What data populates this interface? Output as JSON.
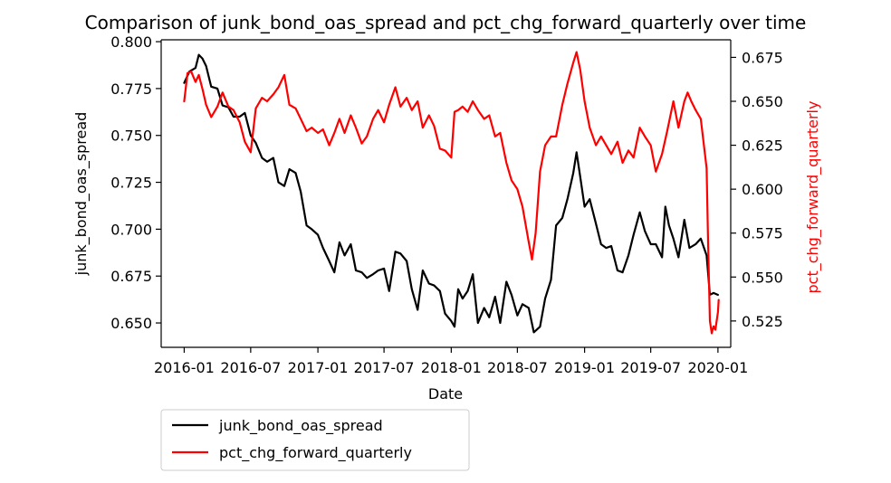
{
  "chart_data": {
    "type": "line",
    "title": "Comparison of junk_bond_oas_spread and pct_chg_forward_quarterly over time",
    "xlabel": "Date",
    "ylabel_left": "junk_bond_oas_spread",
    "ylabel_right": "pct_chg_forward_quarterly",
    "xlim": [
      "2015-10-30",
      "2020-02-05"
    ],
    "ylim_left": [
      0.637,
      0.801
    ],
    "ylim_right": [
      0.51,
      0.685
    ],
    "x_ticks": [
      {
        "date": "2016-01-01",
        "label": "2016-01"
      },
      {
        "date": "2016-07-01",
        "label": "2016-07"
      },
      {
        "date": "2017-01-01",
        "label": "2017-01"
      },
      {
        "date": "2017-07-01",
        "label": "2017-07"
      },
      {
        "date": "2018-01-01",
        "label": "2018-01"
      },
      {
        "date": "2018-07-01",
        "label": "2018-07"
      },
      {
        "date": "2019-01-01",
        "label": "2019-01"
      },
      {
        "date": "2019-07-01",
        "label": "2019-07"
      },
      {
        "date": "2020-01-01",
        "label": "2020-01"
      }
    ],
    "y_ticks_left": [
      {
        "value": 0.65,
        "label": "0.650"
      },
      {
        "value": 0.675,
        "label": "0.675"
      },
      {
        "value": 0.7,
        "label": "0.700"
      },
      {
        "value": 0.725,
        "label": "0.725"
      },
      {
        "value": 0.75,
        "label": "0.750"
      },
      {
        "value": 0.775,
        "label": "0.775"
      },
      {
        "value": 0.8,
        "label": "0.800"
      }
    ],
    "y_ticks_right": [
      {
        "value": 0.525,
        "label": "0.525"
      },
      {
        "value": 0.55,
        "label": "0.550"
      },
      {
        "value": 0.575,
        "label": "0.575"
      },
      {
        "value": 0.6,
        "label": "0.600"
      },
      {
        "value": 0.625,
        "label": "0.625"
      },
      {
        "value": 0.65,
        "label": "0.650"
      },
      {
        "value": 0.675,
        "label": "0.675"
      }
    ],
    "grid": false,
    "legend_position": "below-left",
    "series": [
      {
        "name": "junk_bond_oas_spread",
        "axis": "left",
        "color": "#000000",
        "points": [
          [
            "2016-01-01",
            0.778
          ],
          [
            "2016-01-15",
            0.784
          ],
          [
            "2016-02-01",
            0.786
          ],
          [
            "2016-02-10",
            0.793
          ],
          [
            "2016-02-20",
            0.791
          ],
          [
            "2016-03-01",
            0.787
          ],
          [
            "2016-03-15",
            0.776
          ],
          [
            "2016-04-01",
            0.775
          ],
          [
            "2016-04-15",
            0.766
          ],
          [
            "2016-05-01",
            0.765
          ],
          [
            "2016-05-15",
            0.76
          ],
          [
            "2016-06-01",
            0.76
          ],
          [
            "2016-06-15",
            0.762
          ],
          [
            "2016-07-01",
            0.75
          ],
          [
            "2016-07-15",
            0.746
          ],
          [
            "2016-08-01",
            0.738
          ],
          [
            "2016-08-15",
            0.736
          ],
          [
            "2016-09-01",
            0.738
          ],
          [
            "2016-09-15",
            0.725
          ],
          [
            "2016-10-01",
            0.723
          ],
          [
            "2016-10-15",
            0.732
          ],
          [
            "2016-11-01",
            0.73
          ],
          [
            "2016-11-15",
            0.72
          ],
          [
            "2016-12-01",
            0.702
          ],
          [
            "2016-12-15",
            0.7
          ],
          [
            "2017-01-01",
            0.697
          ],
          [
            "2017-01-15",
            0.69
          ],
          [
            "2017-02-01",
            0.683
          ],
          [
            "2017-02-15",
            0.677
          ],
          [
            "2017-03-01",
            0.693
          ],
          [
            "2017-03-15",
            0.686
          ],
          [
            "2017-04-01",
            0.692
          ],
          [
            "2017-04-15",
            0.678
          ],
          [
            "2017-05-01",
            0.677
          ],
          [
            "2017-05-15",
            0.674
          ],
          [
            "2017-06-01",
            0.676
          ],
          [
            "2017-06-15",
            0.678
          ],
          [
            "2017-07-01",
            0.679
          ],
          [
            "2017-07-15",
            0.667
          ],
          [
            "2017-08-01",
            0.688
          ],
          [
            "2017-08-15",
            0.687
          ],
          [
            "2017-09-01",
            0.683
          ],
          [
            "2017-09-15",
            0.668
          ],
          [
            "2017-10-01",
            0.657
          ],
          [
            "2017-10-15",
            0.678
          ],
          [
            "2017-11-01",
            0.671
          ],
          [
            "2017-11-15",
            0.67
          ],
          [
            "2017-12-01",
            0.667
          ],
          [
            "2017-12-15",
            0.655
          ],
          [
            "2018-01-01",
            0.651
          ],
          [
            "2018-01-10",
            0.648
          ],
          [
            "2018-01-20",
            0.668
          ],
          [
            "2018-02-01",
            0.663
          ],
          [
            "2018-02-15",
            0.667
          ],
          [
            "2018-03-01",
            0.676
          ],
          [
            "2018-03-15",
            0.65
          ],
          [
            "2018-04-01",
            0.658
          ],
          [
            "2018-04-15",
            0.653
          ],
          [
            "2018-05-01",
            0.664
          ],
          [
            "2018-05-15",
            0.65
          ],
          [
            "2018-06-01",
            0.672
          ],
          [
            "2018-06-15",
            0.665
          ],
          [
            "2018-07-01",
            0.654
          ],
          [
            "2018-07-15",
            0.66
          ],
          [
            "2018-08-01",
            0.658
          ],
          [
            "2018-08-15",
            0.645
          ],
          [
            "2018-09-01",
            0.648
          ],
          [
            "2018-09-15",
            0.663
          ],
          [
            "2018-10-01",
            0.673
          ],
          [
            "2018-10-15",
            0.702
          ],
          [
            "2018-11-01",
            0.706
          ],
          [
            "2018-11-15",
            0.716
          ],
          [
            "2018-12-01",
            0.73
          ],
          [
            "2018-12-10",
            0.741
          ],
          [
            "2018-12-20",
            0.728
          ],
          [
            "2019-01-01",
            0.712
          ],
          [
            "2019-01-15",
            0.716
          ],
          [
            "2019-02-01",
            0.703
          ],
          [
            "2019-02-15",
            0.692
          ],
          [
            "2019-03-01",
            0.69
          ],
          [
            "2019-03-15",
            0.691
          ],
          [
            "2019-04-01",
            0.678
          ],
          [
            "2019-04-15",
            0.677
          ],
          [
            "2019-05-01",
            0.686
          ],
          [
            "2019-05-15",
            0.697
          ],
          [
            "2019-06-01",
            0.709
          ],
          [
            "2019-06-15",
            0.699
          ],
          [
            "2019-07-01",
            0.692
          ],
          [
            "2019-07-15",
            0.692
          ],
          [
            "2019-08-01",
            0.685
          ],
          [
            "2019-08-10",
            0.712
          ],
          [
            "2019-08-20",
            0.702
          ],
          [
            "2019-09-01",
            0.695
          ],
          [
            "2019-09-15",
            0.685
          ],
          [
            "2019-10-01",
            0.705
          ],
          [
            "2019-10-15",
            0.69
          ],
          [
            "2019-11-01",
            0.692
          ],
          [
            "2019-11-15",
            0.695
          ],
          [
            "2019-12-01",
            0.686
          ],
          [
            "2019-12-10",
            0.665
          ],
          [
            "2019-12-20",
            0.666
          ],
          [
            "2020-01-01",
            0.665
          ]
        ]
      },
      {
        "name": "pct_chg_forward_quarterly",
        "axis": "right",
        "color": "#ff0000",
        "points": [
          [
            "2016-01-01",
            0.65
          ],
          [
            "2016-01-10",
            0.666
          ],
          [
            "2016-01-20",
            0.667
          ],
          [
            "2016-02-01",
            0.661
          ],
          [
            "2016-02-10",
            0.665
          ],
          [
            "2016-02-20",
            0.657
          ],
          [
            "2016-03-01",
            0.648
          ],
          [
            "2016-03-15",
            0.641
          ],
          [
            "2016-04-01",
            0.647
          ],
          [
            "2016-04-15",
            0.655
          ],
          [
            "2016-05-01",
            0.647
          ],
          [
            "2016-05-15",
            0.645
          ],
          [
            "2016-06-01",
            0.638
          ],
          [
            "2016-06-15",
            0.627
          ],
          [
            "2016-07-01",
            0.621
          ],
          [
            "2016-07-15",
            0.646
          ],
          [
            "2016-08-01",
            0.652
          ],
          [
            "2016-08-15",
            0.65
          ],
          [
            "2016-09-01",
            0.654
          ],
          [
            "2016-09-15",
            0.658
          ],
          [
            "2016-10-01",
            0.665
          ],
          [
            "2016-10-15",
            0.648
          ],
          [
            "2016-11-01",
            0.646
          ],
          [
            "2016-11-15",
            0.64
          ],
          [
            "2016-12-01",
            0.633
          ],
          [
            "2016-12-15",
            0.635
          ],
          [
            "2017-01-01",
            0.632
          ],
          [
            "2017-01-15",
            0.634
          ],
          [
            "2017-02-01",
            0.625
          ],
          [
            "2017-02-15",
            0.632
          ],
          [
            "2017-03-01",
            0.64
          ],
          [
            "2017-03-15",
            0.632
          ],
          [
            "2017-04-01",
            0.642
          ],
          [
            "2017-04-15",
            0.635
          ],
          [
            "2017-05-01",
            0.626
          ],
          [
            "2017-05-15",
            0.63
          ],
          [
            "2017-06-01",
            0.64
          ],
          [
            "2017-06-15",
            0.645
          ],
          [
            "2017-07-01",
            0.638
          ],
          [
            "2017-07-15",
            0.648
          ],
          [
            "2017-08-01",
            0.658
          ],
          [
            "2017-08-15",
            0.647
          ],
          [
            "2017-09-01",
            0.652
          ],
          [
            "2017-09-15",
            0.645
          ],
          [
            "2017-10-01",
            0.65
          ],
          [
            "2017-10-15",
            0.635
          ],
          [
            "2017-11-01",
            0.642
          ],
          [
            "2017-11-15",
            0.636
          ],
          [
            "2017-12-01",
            0.623
          ],
          [
            "2017-12-15",
            0.622
          ],
          [
            "2018-01-01",
            0.618
          ],
          [
            "2018-01-10",
            0.644
          ],
          [
            "2018-01-20",
            0.645
          ],
          [
            "2018-02-01",
            0.647
          ],
          [
            "2018-02-15",
            0.644
          ],
          [
            "2018-03-01",
            0.65
          ],
          [
            "2018-03-15",
            0.645
          ],
          [
            "2018-04-01",
            0.64
          ],
          [
            "2018-04-15",
            0.642
          ],
          [
            "2018-05-01",
            0.63
          ],
          [
            "2018-05-15",
            0.632
          ],
          [
            "2018-06-01",
            0.615
          ],
          [
            "2018-06-15",
            0.605
          ],
          [
            "2018-07-01",
            0.6
          ],
          [
            "2018-07-15",
            0.59
          ],
          [
            "2018-08-01",
            0.57
          ],
          [
            "2018-08-10",
            0.56
          ],
          [
            "2018-08-20",
            0.575
          ],
          [
            "2018-09-01",
            0.61
          ],
          [
            "2018-09-15",
            0.625
          ],
          [
            "2018-10-01",
            0.63
          ],
          [
            "2018-10-15",
            0.63
          ],
          [
            "2018-11-01",
            0.648
          ],
          [
            "2018-11-15",
            0.66
          ],
          [
            "2018-12-01",
            0.672
          ],
          [
            "2018-12-10",
            0.678
          ],
          [
            "2018-12-20",
            0.668
          ],
          [
            "2019-01-01",
            0.65
          ],
          [
            "2019-01-15",
            0.635
          ],
          [
            "2019-02-01",
            0.625
          ],
          [
            "2019-02-15",
            0.63
          ],
          [
            "2019-03-01",
            0.625
          ],
          [
            "2019-03-15",
            0.62
          ],
          [
            "2019-04-01",
            0.627
          ],
          [
            "2019-04-15",
            0.615
          ],
          [
            "2019-05-01",
            0.622
          ],
          [
            "2019-05-15",
            0.618
          ],
          [
            "2019-06-01",
            0.635
          ],
          [
            "2019-06-15",
            0.63
          ],
          [
            "2019-07-01",
            0.625
          ],
          [
            "2019-07-15",
            0.61
          ],
          [
            "2019-08-01",
            0.62
          ],
          [
            "2019-08-15",
            0.633
          ],
          [
            "2019-09-01",
            0.65
          ],
          [
            "2019-09-15",
            0.635
          ],
          [
            "2019-10-01",
            0.65
          ],
          [
            "2019-10-10",
            0.655
          ],
          [
            "2019-10-20",
            0.65
          ],
          [
            "2019-11-01",
            0.645
          ],
          [
            "2019-11-15",
            0.64
          ],
          [
            "2019-12-01",
            0.612
          ],
          [
            "2019-12-05",
            0.57
          ],
          [
            "2019-12-10",
            0.525
          ],
          [
            "2019-12-15",
            0.518
          ],
          [
            "2019-12-20",
            0.522
          ],
          [
            "2019-12-25",
            0.52
          ],
          [
            "2020-01-01",
            0.53
          ],
          [
            "2020-01-03",
            0.537
          ]
        ]
      }
    ]
  },
  "legend": {
    "items": [
      {
        "label": "junk_bond_oas_spread",
        "color": "#000000"
      },
      {
        "label": "pct_chg_forward_quarterly",
        "color": "#ff0000"
      }
    ]
  }
}
